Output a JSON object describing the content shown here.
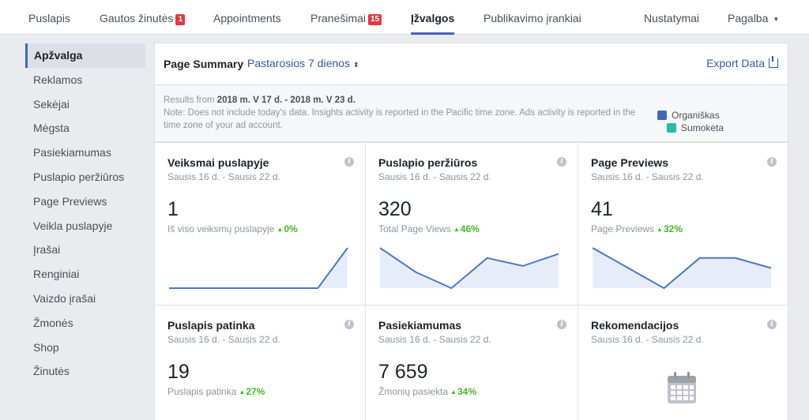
{
  "topnav": {
    "items": [
      {
        "label": "Puslapis"
      },
      {
        "label": "Gautos žinutės",
        "badge": "1"
      },
      {
        "label": "Appointments"
      },
      {
        "label": "Pranešimai",
        "badge": "15"
      },
      {
        "label": "Įžvalgos",
        "active": true
      },
      {
        "label": "Publikavimo įrankiai"
      },
      {
        "label": "Nustatymai"
      },
      {
        "label": "Pagalba"
      }
    ]
  },
  "sidebar": {
    "items": [
      {
        "label": "Apžvalga",
        "active": true
      },
      {
        "label": "Reklamos"
      },
      {
        "label": "Sekėjai"
      },
      {
        "label": "Mėgsta"
      },
      {
        "label": "Pasiekiamumas"
      },
      {
        "label": "Puslapio peržiūros"
      },
      {
        "label": "Page Previews"
      },
      {
        "label": "Veikla puslapyje"
      },
      {
        "label": "Įrašai"
      },
      {
        "label": "Renginiai"
      },
      {
        "label": "Vaizdo įrašai"
      },
      {
        "label": "Žmonės"
      },
      {
        "label": "Shop"
      },
      {
        "label": "Žinutės"
      }
    ]
  },
  "summary": {
    "title": "Page Summary",
    "range": "Pastarosios 7 dienos",
    "export_label": "Export Data",
    "note_prefix": "Results from",
    "note_dates": "2018 m. V 17 d. - 2018 m. V 23 d.",
    "note_body": "Note: Does not include today's data. Insights activity is reported in the Pacific time zone. Ads activity is reported in the time zone of your ad account.",
    "legend": [
      {
        "label": "Organiškas",
        "color": "#4267b2"
      },
      {
        "label": "Sumokėta",
        "color": "#2abba7"
      }
    ]
  },
  "cards": [
    {
      "title": "Veiksmai puslapyje",
      "date": "Sausis 16 d. - Sausis 22 d.",
      "value": "1",
      "sub": "Iš viso veiksmų puslapyje",
      "delta": "0%",
      "spark": [
        0,
        0,
        0,
        0,
        0,
        0,
        1
      ]
    },
    {
      "title": "Puslapio peržiūros",
      "date": "Sausis 16 d. - Sausis 22 d.",
      "value": "320",
      "sub": "Total Page Views",
      "delta": "46%",
      "spark": [
        58,
        46,
        38,
        53,
        49,
        55
      ]
    },
    {
      "title": "Page Previews",
      "date": "Sausis 16 d. - Sausis 22 d.",
      "value": "41",
      "sub": "Page Previews",
      "delta": "32%",
      "spark": [
        8,
        6,
        4,
        7,
        7,
        6
      ]
    },
    {
      "title": "Puslapis patinka",
      "date": "Sausis 16 d. - Sausis 22 d.",
      "value": "19",
      "sub": "Puslapis patinka",
      "delta": "27%"
    },
    {
      "title": "Pasiekiamumas",
      "date": "Sausis 16 d. - Sausis 22 d.",
      "value": "7 659",
      "sub": "Žmonių pasiekta",
      "delta": "34%"
    },
    {
      "title": "Rekomendacijos",
      "date": "Sausis 16 d. - Sausis 22 d."
    }
  ],
  "colors": {
    "accent": "#4267b2",
    "spark_line": "#4a77c9",
    "spark_fill": "#e7edf8",
    "delta": "#42b72a",
    "badge": "#e0393e"
  }
}
